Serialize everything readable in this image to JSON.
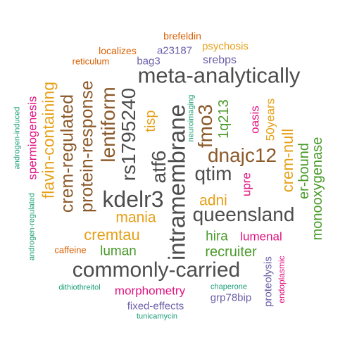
{
  "colors": {
    "gray": "#4d4d4d",
    "orange": "#e6a019",
    "brown": "#8b5a2b",
    "green": "#4a9a2a",
    "pink": "#e0117f",
    "purple": "#6a5fa8",
    "teal": "#1b9e77",
    "redorange": "#d95f02"
  },
  "words": {
    "w1": {
      "text": "meta-analytically",
      "color": "#4d4d4d"
    },
    "w2": {
      "text": "commonly-carried",
      "color": "#4d4d4d"
    },
    "w3": {
      "text": "intramembrane",
      "color": "#4d4d4d"
    },
    "w4": {
      "text": "queensland",
      "color": "#4d4d4d"
    },
    "w5": {
      "text": "kdelr3",
      "color": "#4d4d4d"
    },
    "w6": {
      "text": "rs1795240",
      "color": "#4d4d4d"
    },
    "w7": {
      "text": "atf6",
      "color": "#4d4d4d"
    },
    "w8": {
      "text": "qtim",
      "color": "#4d4d4d"
    },
    "w9": {
      "text": "dnajc12",
      "color": "#8b5a2b"
    },
    "w10": {
      "text": "fmo3",
      "color": "#8b5a2b"
    },
    "w11": {
      "text": "lentiform",
      "color": "#8b5a2b"
    },
    "w12": {
      "text": "protein-response",
      "color": "#8b5a2b"
    },
    "w13": {
      "text": "crem-regulated",
      "color": "#8b5a2b"
    },
    "w14": {
      "text": "flavin-containing",
      "color": "#e6a019"
    },
    "w15": {
      "text": "cremtau",
      "color": "#e6a019"
    },
    "w16": {
      "text": "mania",
      "color": "#e6a019"
    },
    "w17": {
      "text": "adni",
      "color": "#e6a019"
    },
    "w18": {
      "text": "tisp",
      "color": "#e6a019"
    },
    "w19": {
      "text": "crem-null",
      "color": "#e6a019"
    },
    "w20": {
      "text": "50years",
      "color": "#e6a019"
    },
    "w21": {
      "text": "psychosis",
      "color": "#e6a019"
    },
    "w22": {
      "text": "1q213",
      "color": "#4a9a2a"
    },
    "w23": {
      "text": "er-bound",
      "color": "#4a9a2a"
    },
    "w24": {
      "text": "monooxygenase",
      "color": "#4a9a2a"
    },
    "w25": {
      "text": "hira",
      "color": "#4a9a2a"
    },
    "w26": {
      "text": "recruiter",
      "color": "#4a9a2a"
    },
    "w27": {
      "text": "luman",
      "color": "#4a9a2a"
    },
    "w28": {
      "text": "spermiogenesis",
      "color": "#e0117f"
    },
    "w29": {
      "text": "oasis",
      "color": "#e0117f"
    },
    "w30": {
      "text": "upre",
      "color": "#e0117f"
    },
    "w31": {
      "text": "lumenal",
      "color": "#e0117f"
    },
    "w32": {
      "text": "morphometry",
      "color": "#e0117f"
    },
    "w33": {
      "text": "endoplasmic",
      "color": "#e0117f"
    },
    "w34": {
      "text": "srebps",
      "color": "#6a5fa8"
    },
    "w35": {
      "text": "a23187",
      "color": "#6a5fa8"
    },
    "w36": {
      "text": "bag3",
      "color": "#6a5fa8"
    },
    "w37": {
      "text": "fixed-effects",
      "color": "#6a5fa8"
    },
    "w38": {
      "text": "grp78bip",
      "color": "#6a5fa8"
    },
    "w39": {
      "text": "proteolysis",
      "color": "#6a5fa8"
    },
    "w40": {
      "text": "androgen-induced",
      "color": "#1b9e77"
    },
    "w41": {
      "text": "androgen-regulated",
      "color": "#1b9e77"
    },
    "w42": {
      "text": "neuroimaging",
      "color": "#1b9e77"
    },
    "w43": {
      "text": "dithiothreitol",
      "color": "#1b9e77"
    },
    "w44": {
      "text": "chaperone",
      "color": "#1b9e77"
    },
    "w45": {
      "text": "tunicamycin",
      "color": "#1b9e77"
    },
    "w46": {
      "text": "brefeldin",
      "color": "#d95f02"
    },
    "w47": {
      "text": "localizes",
      "color": "#d95f02"
    },
    "w48": {
      "text": "reticulum",
      "color": "#d95f02"
    },
    "w49": {
      "text": "caffeine",
      "color": "#d95f02"
    }
  }
}
